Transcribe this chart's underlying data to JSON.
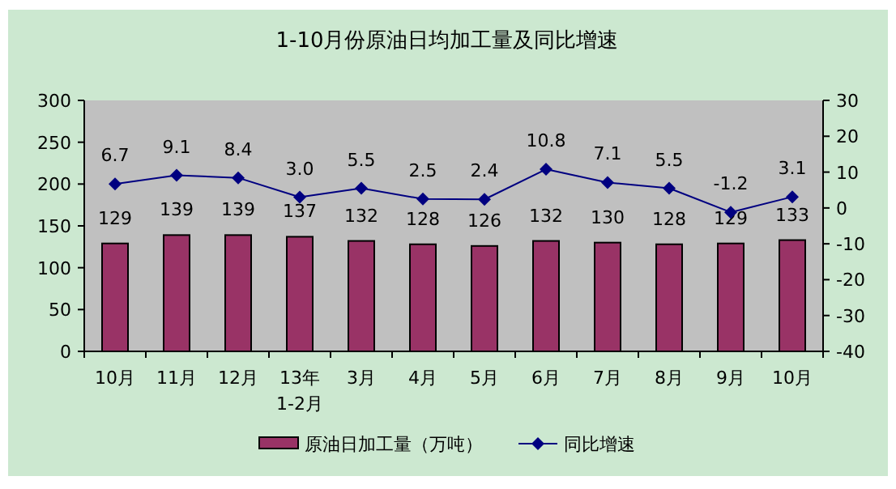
{
  "chart_data": {
    "type": "bar",
    "title": "1-10月份原油日均加工量及同比增速",
    "categories": [
      "10月",
      "11月",
      "12月",
      "13年\n1-2月",
      "3月",
      "4月",
      "5月",
      "6月",
      "7月",
      "8月",
      "9月",
      "10月"
    ],
    "series": [
      {
        "name": "原油日加工量（万吨）",
        "color": "#993366",
        "values": [
          129,
          139,
          139,
          137,
          132,
          128,
          126,
          132,
          130,
          128,
          129,
          133
        ]
      },
      {
        "name": "同比增速",
        "type": "line",
        "axis": "y2",
        "color": "#000080",
        "values": [
          6.7,
          9.1,
          8.4,
          3.0,
          5.5,
          2.5,
          2.4,
          10.8,
          7.1,
          5.5,
          -1.2,
          3.1
        ],
        "value_labels": [
          "6.7",
          "9.1",
          "8.4",
          "3.0",
          "5.5",
          "2.5",
          "2.4",
          "10.8",
          "7.1",
          "5.5",
          "-1.2",
          "3.1"
        ]
      }
    ],
    "ylim": [
      0,
      300
    ],
    "yticks": [
      0,
      50,
      100,
      150,
      200,
      250,
      300
    ],
    "y2lim": [
      -40,
      30
    ],
    "y2ticks": [
      -40,
      -30,
      -20,
      -10,
      0,
      10,
      20,
      30
    ],
    "data_labels": true,
    "marker": "diamond",
    "legend": "bottom"
  }
}
